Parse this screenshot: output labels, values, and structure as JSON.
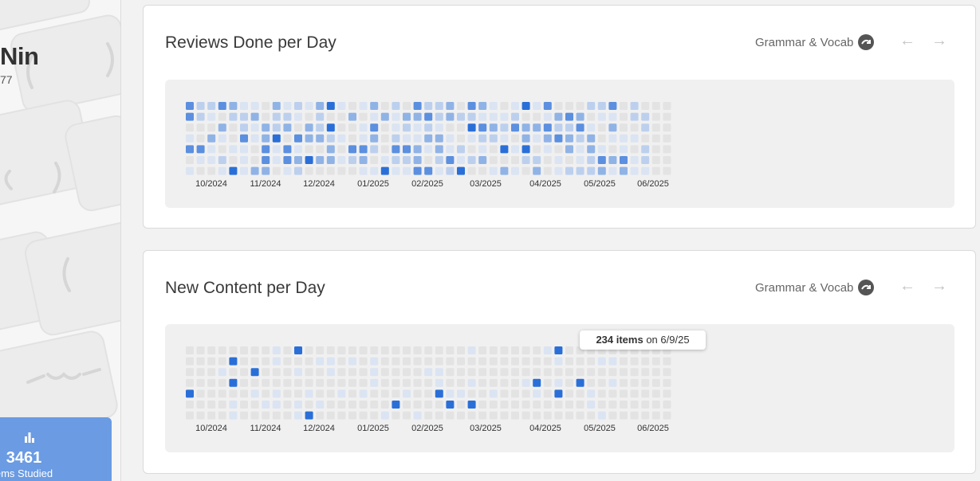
{
  "sidebar": {
    "user_name": "Nin",
    "user_sub": "77",
    "stat_value": "3461",
    "stat_label": "ems Studied"
  },
  "cards": [
    {
      "title": "Reviews Done per Day",
      "filter_label": "Grammar & Vocab",
      "months": [
        "10/2024",
        "11/2024",
        "12/2024",
        "01/2025",
        "02/2025",
        "03/2025",
        "04/2025",
        "05/2025",
        "06/2025"
      ]
    },
    {
      "title": "New Content per Day",
      "filter_label": "Grammar & Vocab",
      "months": [
        "10/2024",
        "11/2024",
        "12/2024",
        "01/2025",
        "02/2025",
        "03/2025",
        "04/2025",
        "05/2025",
        "06/2025"
      ]
    }
  ],
  "tooltip": {
    "count": "234 items",
    "suffix": "on 6/9/25"
  },
  "colors": {
    "empty": "#e3e3e3",
    "level1": "#dbe4f2",
    "level2": "#bcd0ee",
    "level3": "#90b3e6",
    "level4": "#5b8fdf",
    "level5": "#2a6fd8",
    "accent": "#6a9be3"
  }
}
